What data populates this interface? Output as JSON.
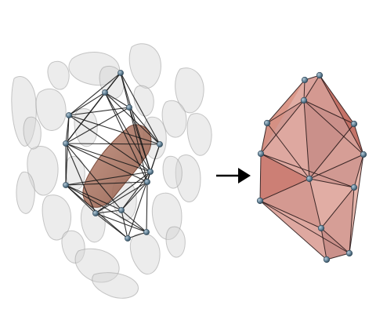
{
  "figure": {
    "left_panel": {
      "name": "point-cloud-with-wireframe-graph",
      "cloud_color": "#c9c9c9",
      "highlight_object_color": "#a8725f",
      "edge_color": "#1a1a1a",
      "node_color": "#5f7f94"
    },
    "arrow": {
      "name": "transform-arrow",
      "color": "#000000"
    },
    "right_panel": {
      "name": "convex-polyhedron",
      "face_color": "#c0665b",
      "edge_color": "#2a1a1a",
      "node_color": "#5f7f94"
    }
  }
}
